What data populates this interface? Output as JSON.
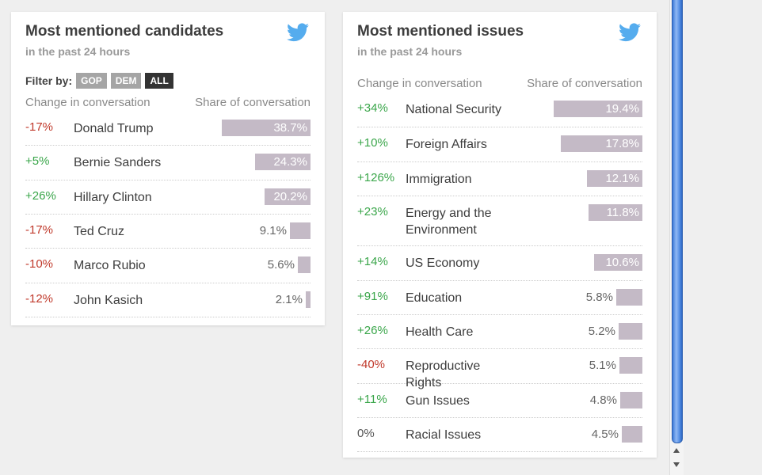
{
  "candidates": {
    "title": "Most mentioned candidates",
    "subtitle": "in the past 24 hours",
    "filter_label": "Filter by:",
    "filters": [
      "GOP",
      "DEM",
      "ALL"
    ],
    "active_filter": "ALL",
    "col_change": "Change in conversation",
    "col_share": "Share of conversation",
    "rows": [
      {
        "change": "-17%",
        "name": "Donald Trump",
        "share": "38.7%",
        "pct": 38.7
      },
      {
        "change": "+5%",
        "name": "Bernie Sanders",
        "share": "24.3%",
        "pct": 24.3
      },
      {
        "change": "+26%",
        "name": "Hillary Clinton",
        "share": "20.2%",
        "pct": 20.2
      },
      {
        "change": "-17%",
        "name": "Ted Cruz",
        "share": "9.1%",
        "pct": 9.1
      },
      {
        "change": "-10%",
        "name": "Marco Rubio",
        "share": "5.6%",
        "pct": 5.6
      },
      {
        "change": "-12%",
        "name": "John Kasich",
        "share": "2.1%",
        "pct": 2.1
      }
    ]
  },
  "issues": {
    "title": "Most mentioned issues",
    "subtitle": "in the past 24 hours",
    "col_change": "Change in conversation",
    "col_share": "Share of conversation",
    "rows": [
      {
        "change": "+34%",
        "name": "National Security",
        "share": "19.4%",
        "pct": 19.4
      },
      {
        "change": "+10%",
        "name": "Foreign Affairs",
        "share": "17.8%",
        "pct": 17.8
      },
      {
        "change": "+126%",
        "name": "Immigration",
        "share": "12.1%",
        "pct": 12.1
      },
      {
        "change": "+23%",
        "name": "Energy and the Environment",
        "share": "11.8%",
        "pct": 11.8
      },
      {
        "change": "+14%",
        "name": "US Economy",
        "share": "10.6%",
        "pct": 10.6
      },
      {
        "change": "+91%",
        "name": "Education",
        "share": "5.8%",
        "pct": 5.8
      },
      {
        "change": "+26%",
        "name": "Health Care",
        "share": "5.2%",
        "pct": 5.2
      },
      {
        "change": "-40%",
        "name": "Reproductive Rights",
        "share": "5.1%",
        "pct": 5.1
      },
      {
        "change": "+11%",
        "name": "Gun Issues",
        "share": "4.8%",
        "pct": 4.8
      },
      {
        "change": "0%",
        "name": "Racial Issues",
        "share": "4.5%",
        "pct": 4.5
      }
    ]
  },
  "colors": {
    "positive": "#3aa64a",
    "negative": "#c0392b",
    "bar": "#c4bac6",
    "twitter": "#55acee"
  },
  "icons": {
    "twitter": "twitter-bird-icon"
  }
}
